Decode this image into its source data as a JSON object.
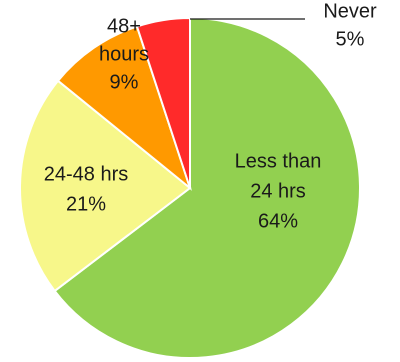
{
  "chart_data": {
    "type": "pie",
    "slices": [
      {
        "label_lines": [
          "Less than",
          "24 hrs"
        ],
        "percent_label": "64%",
        "value": 64,
        "color": "#92d050"
      },
      {
        "label_lines": [
          "24-48 hrs"
        ],
        "percent_label": "21%",
        "value": 21,
        "color": "#f7f78a"
      },
      {
        "label_lines": [
          "48+",
          "hours"
        ],
        "percent_label": "9%",
        "value": 9,
        "color": "#ff9900"
      },
      {
        "label_lines": [
          "Never"
        ],
        "percent_label": "5%",
        "value": 5,
        "color": "#ff2a2a"
      }
    ]
  }
}
